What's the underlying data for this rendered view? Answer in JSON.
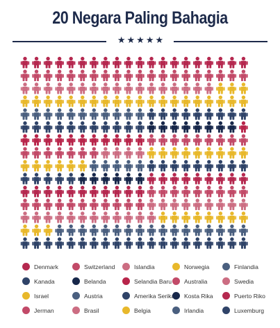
{
  "title": "20 Negara Paling Bahagia",
  "stars": "★★★★★",
  "grid": {
    "rows": 15,
    "cols": 20,
    "color_counts": [
      {
        "country": "Denmark",
        "color": "#b5284f",
        "count": 20
      },
      {
        "country": "Switzerland",
        "color": "#c24a68",
        "count": 20
      },
      {
        "country": "Islandia",
        "color": "#cc6d82",
        "count": 17
      },
      {
        "country": "Norwegia",
        "color": "#e8b82b",
        "count": 23
      },
      {
        "country": "Finlandia",
        "color": "#4a5f7f",
        "count": 11
      },
      {
        "country": "Kanada",
        "color": "#2f4368",
        "count": 20
      },
      {
        "country": "Belanda",
        "color": "#17274a",
        "count": 8
      },
      {
        "country": "Selandia Baru",
        "color": "#b8254a",
        "count": 12
      },
      {
        "country": "Australia",
        "color": "#c24a68",
        "count": 16
      },
      {
        "country": "Swedia",
        "color": "#cc6d82",
        "count": 4
      },
      {
        "country": "Israel",
        "color": "#e8b82b",
        "count": 15
      },
      {
        "country": "Austria",
        "color": "#4a5f7f",
        "count": 5
      },
      {
        "country": "Amerika Serikat",
        "color": "#2f4368",
        "count": 14
      },
      {
        "country": "Kosta Rika",
        "color": "#17274a",
        "count": 6
      },
      {
        "country": "Puerto Riko",
        "color": "#b5284f",
        "count": 20
      },
      {
        "country": "Jerman",
        "color": "#c24a68",
        "count": 20
      },
      {
        "country": "Brasil",
        "color": "#cc6d82",
        "count": 21
      },
      {
        "country": "Belgia",
        "color": "#e8b82b",
        "count": 11
      },
      {
        "country": "Irlandia",
        "color": "#4a5f7f",
        "count": 17
      },
      {
        "country": "Luxemburg",
        "color": "#2f4368",
        "count": 20
      }
    ]
  },
  "legend": [
    {
      "label": "Denmark",
      "color": "#b5284f"
    },
    {
      "label": "Switzerland",
      "color": "#c24a68"
    },
    {
      "label": "Islandia",
      "color": "#cc6d82"
    },
    {
      "label": "Norwegia",
      "color": "#e8b82b"
    },
    {
      "label": "Finlandia",
      "color": "#4a5f7f"
    },
    {
      "label": "Kanada",
      "color": "#2f4368"
    },
    {
      "label": "Belanda",
      "color": "#17274a"
    },
    {
      "label": "Selandia Baru",
      "color": "#b8254a"
    },
    {
      "label": "Australia",
      "color": "#c24a68"
    },
    {
      "label": "Swedia",
      "color": "#cc6d82"
    },
    {
      "label": "Israel",
      "color": "#e8b82b"
    },
    {
      "label": "Austria",
      "color": "#4a5f7f"
    },
    {
      "label": "Amerika Serikat",
      "color": "#2f4368"
    },
    {
      "label": "Kosta Rika",
      "color": "#17274a"
    },
    {
      "label": "Puerto Riko",
      "color": "#b5284f"
    },
    {
      "label": "Jerman",
      "color": "#c24a68"
    },
    {
      "label": "Brasil",
      "color": "#cc6d82"
    },
    {
      "label": "Belgia",
      "color": "#e8b82b"
    },
    {
      "label": "Irlandia",
      "color": "#4a5f7f"
    },
    {
      "label": "Luxemburg",
      "color": "#2f4368"
    }
  ]
}
